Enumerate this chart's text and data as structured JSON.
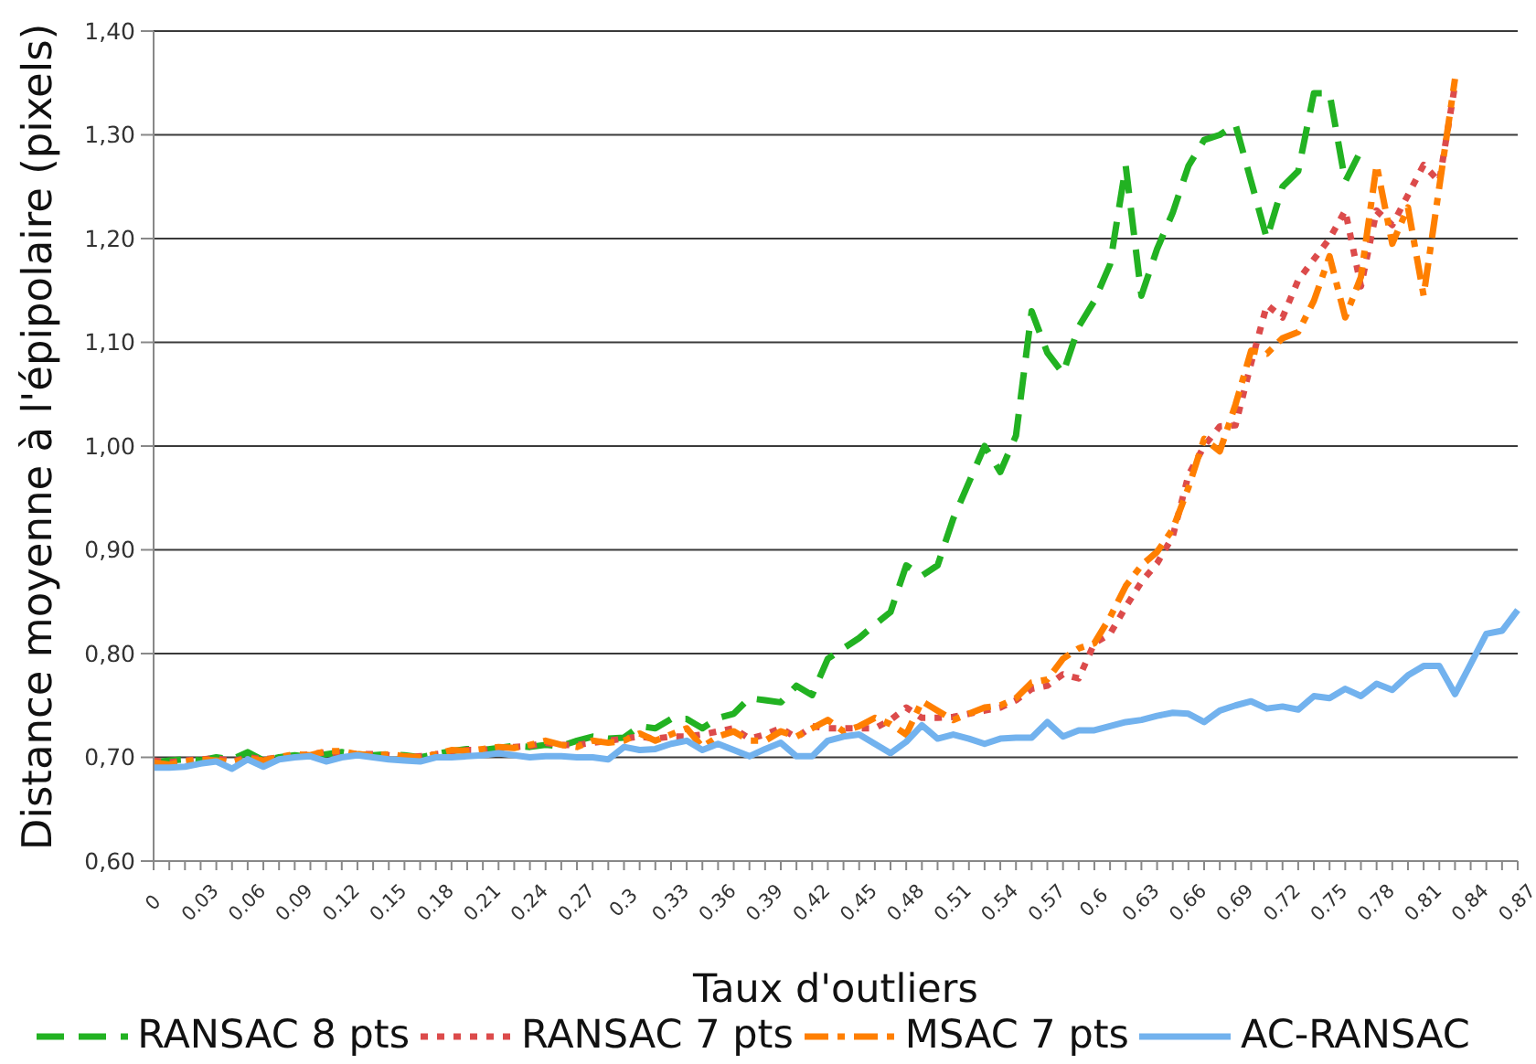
{
  "chart_data": {
    "type": "line",
    "xlabel": "Taux d'outliers",
    "ylabel": "Distance moyenne à l'épipolaire (pixels)",
    "categories": [
      "0",
      null,
      null,
      "0.03",
      null,
      null,
      "0.06",
      null,
      null,
      "0.09",
      null,
      null,
      "0.12",
      null,
      null,
      "0.15",
      null,
      null,
      "0.18",
      null,
      null,
      "0.21",
      null,
      null,
      "0.24",
      null,
      null,
      "0.27",
      null,
      null,
      "0.3",
      null,
      null,
      "0.33",
      null,
      null,
      "0.36",
      null,
      null,
      "0.39",
      null,
      null,
      "0.42",
      null,
      null,
      "0.45",
      null,
      null,
      "0.48",
      null,
      null,
      "0.51",
      null,
      null,
      "0.54",
      null,
      null,
      "0.57",
      null,
      null,
      "0.6",
      null,
      null,
      "0.63",
      null,
      null,
      "0.66",
      null,
      null,
      "0.69",
      null,
      null,
      "0.72",
      null,
      null,
      "0.75",
      null,
      null,
      "0.78",
      null,
      null,
      "0.81",
      null,
      null,
      "0.84",
      null,
      null,
      "0.87"
    ],
    "series": [
      {
        "name": "RANSAC 8 pts",
        "color": "#22b222",
        "line_style": "dashed",
        "values": [
          0.695,
          0.697,
          0.698,
          0.697,
          0.7,
          0.698,
          0.705,
          0.697,
          0.7,
          0.702,
          0.7,
          0.703,
          0.705,
          0.703,
          0.702,
          0.703,
          0.702,
          0.7,
          0.703,
          0.706,
          0.708,
          0.707,
          0.709,
          0.711,
          0.71,
          0.712,
          0.711,
          0.716,
          0.72,
          0.718,
          0.719,
          0.73,
          0.728,
          0.737,
          0.737,
          0.728,
          0.738,
          0.742,
          0.757,
          0.755,
          0.753,
          0.769,
          0.76,
          0.795,
          0.805,
          0.815,
          0.828,
          0.84,
          0.885,
          0.875,
          0.885,
          0.93,
          0.965,
          1.0,
          0.975,
          1.01,
          1.13,
          1.09,
          1.07,
          1.115,
          1.14,
          1.175,
          1.27,
          1.145,
          1.19,
          1.225,
          1.27,
          1.295,
          1.3,
          1.31,
          1.255,
          1.2,
          1.25,
          1.265,
          1.34,
          1.34,
          1.255,
          1.285,
          null,
          null,
          null,
          null,
          null,
          null,
          null,
          null,
          null,
          null
        ]
      },
      {
        "name": "RANSAC 7 pts",
        "color": "#dc4b4b",
        "line_style": "dotted",
        "values": [
          0.697,
          0.695,
          0.697,
          0.698,
          0.699,
          0.696,
          0.7,
          0.698,
          0.7,
          0.701,
          0.703,
          0.705,
          0.704,
          0.703,
          0.703,
          0.702,
          0.7,
          0.701,
          0.703,
          0.705,
          0.707,
          0.707,
          0.709,
          0.71,
          0.711,
          0.714,
          0.712,
          0.712,
          0.714,
          0.716,
          0.718,
          0.72,
          0.718,
          0.72,
          0.72,
          0.722,
          0.725,
          0.728,
          0.718,
          0.722,
          0.728,
          0.719,
          0.73,
          0.728,
          0.728,
          0.728,
          0.728,
          0.736,
          0.748,
          0.738,
          0.738,
          0.739,
          0.742,
          0.745,
          0.748,
          0.755,
          0.766,
          0.769,
          0.78,
          0.776,
          0.81,
          0.819,
          0.845,
          0.869,
          0.887,
          0.913,
          0.972,
          1.0,
          1.019,
          1.02,
          1.08,
          1.136,
          1.124,
          1.16,
          1.18,
          1.2,
          1.227,
          1.154,
          1.227,
          1.213,
          1.242,
          1.271,
          1.255,
          1.348,
          null,
          null,
          null,
          null
        ]
      },
      {
        "name": "MSAC 7 pts",
        "color": "#ff7f00",
        "line_style": "dashdot",
        "values": [
          0.695,
          0.693,
          0.696,
          0.698,
          0.697,
          0.695,
          0.699,
          0.697,
          0.7,
          0.703,
          0.702,
          0.706,
          0.706,
          0.703,
          0.702,
          0.703,
          0.701,
          0.7,
          0.703,
          0.707,
          0.706,
          0.708,
          0.71,
          0.709,
          0.712,
          0.716,
          0.712,
          0.71,
          0.716,
          0.714,
          0.716,
          0.723,
          0.716,
          0.722,
          0.728,
          0.71,
          0.72,
          0.725,
          0.716,
          0.716,
          0.725,
          0.72,
          0.728,
          0.736,
          0.725,
          0.73,
          0.738,
          0.732,
          0.722,
          0.754,
          0.745,
          0.736,
          0.742,
          0.748,
          0.75,
          0.757,
          0.772,
          0.775,
          0.795,
          0.805,
          0.81,
          0.835,
          0.865,
          0.885,
          0.898,
          0.92,
          0.96,
          1.007,
          0.995,
          1.04,
          1.092,
          1.089,
          1.104,
          1.11,
          1.14,
          1.183,
          1.124,
          1.163,
          1.271,
          1.195,
          1.23,
          1.145,
          1.25,
          1.354,
          null,
          null,
          null,
          null
        ]
      },
      {
        "name": "AC-RANSAC",
        "color": "#72b2ee",
        "line_style": "solid",
        "values": [
          0.69,
          0.69,
          0.691,
          0.694,
          0.696,
          0.689,
          0.698,
          0.691,
          0.698,
          0.7,
          0.701,
          0.696,
          0.7,
          0.702,
          0.7,
          0.698,
          0.697,
          0.696,
          0.7,
          0.7,
          0.701,
          0.702,
          0.704,
          0.702,
          0.7,
          0.701,
          0.701,
          0.7,
          0.7,
          0.698,
          0.71,
          0.707,
          0.708,
          0.713,
          0.716,
          0.707,
          0.713,
          0.707,
          0.701,
          0.708,
          0.714,
          0.701,
          0.701,
          0.716,
          0.72,
          0.722,
          0.713,
          0.704,
          0.715,
          0.731,
          0.718,
          0.722,
          0.718,
          0.713,
          0.718,
          0.719,
          0.719,
          0.734,
          0.72,
          0.726,
          0.726,
          0.73,
          0.734,
          0.736,
          0.74,
          0.743,
          0.742,
          0.734,
          0.745,
          0.75,
          0.754,
          0.747,
          0.749,
          0.746,
          0.759,
          0.757,
          0.766,
          0.759,
          0.771,
          0.765,
          0.779,
          0.788,
          0.788,
          0.761,
          0.79,
          0.819,
          0.822,
          0.842
        ]
      }
    ],
    "ylim": [
      0.6,
      1.4
    ],
    "yticks": [
      {
        "value": 0.6,
        "label": "0,60"
      },
      {
        "value": 0.7,
        "label": "0,70"
      },
      {
        "value": 0.8,
        "label": "0,80"
      },
      {
        "value": 0.9,
        "label": "0,90"
      },
      {
        "value": 1.0,
        "label": "1,00"
      },
      {
        "value": 1.1,
        "label": "1,10"
      },
      {
        "value": 1.2,
        "label": "1,20"
      },
      {
        "value": 1.3,
        "label": "1,30"
      },
      {
        "value": 1.4,
        "label": "1,40"
      }
    ],
    "grid": "y",
    "legend": "bottom"
  }
}
